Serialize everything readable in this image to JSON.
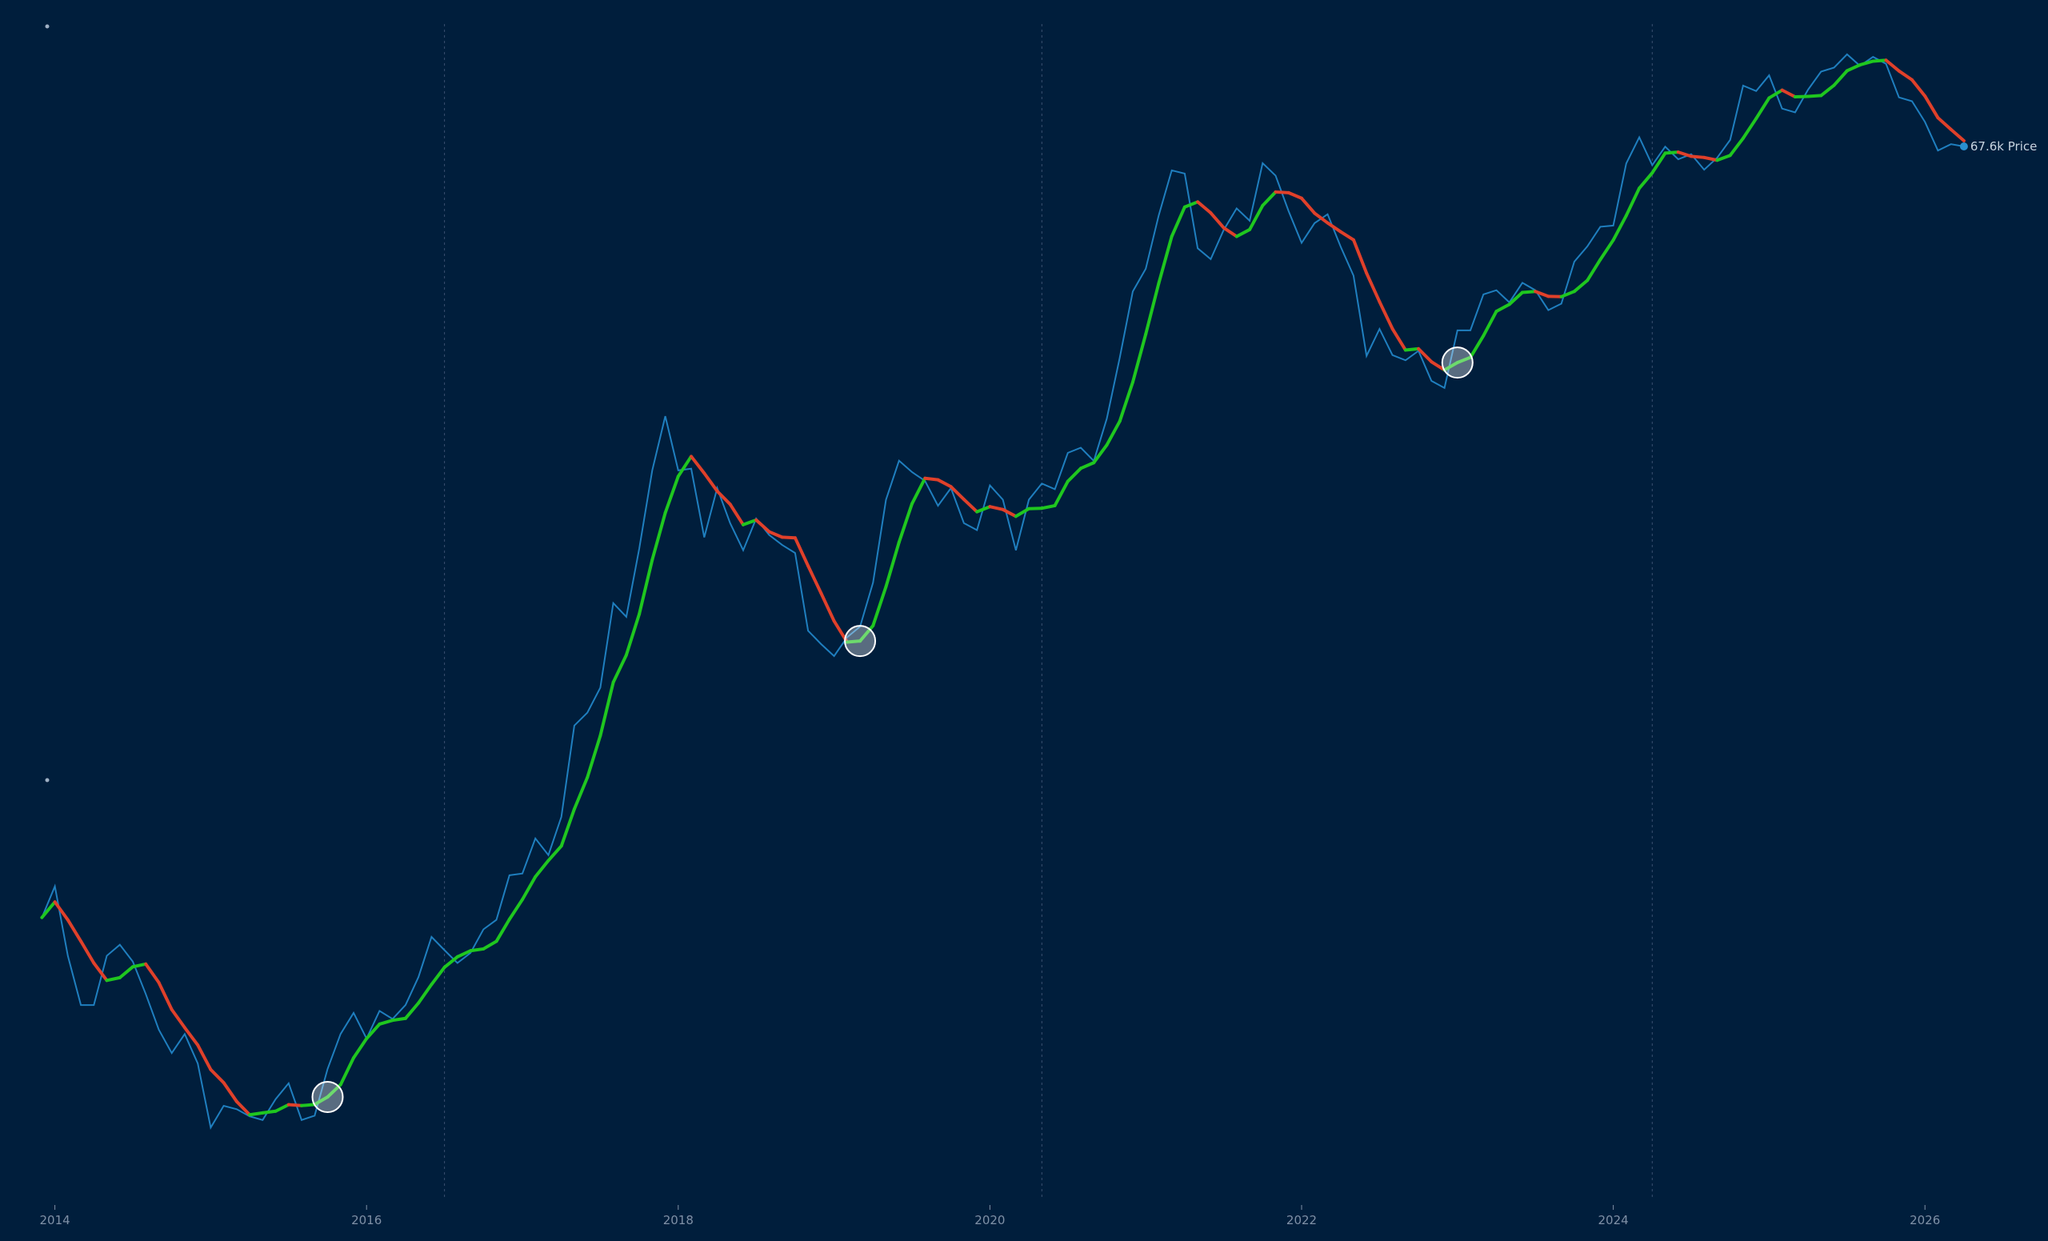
{
  "chart_data": {
    "type": "line",
    "title": "",
    "xlabel": "",
    "ylabel": "",
    "y_scale": "log",
    "grid": false,
    "x_ticks": [
      "2014",
      "2016",
      "2018",
      "2020",
      "2022",
      "2024",
      "2026"
    ],
    "x_range": [
      "2013-12",
      "2026-04"
    ],
    "halving_lines": [
      "2016-07",
      "2020-05",
      "2024-04"
    ],
    "last_price_label": "67.6k Price",
    "colors": {
      "background": "#001e3c",
      "price": "#1f7fbf",
      "trend_up": "#1fc71f",
      "trend_down": "#e0402a",
      "marker": "#ffffff",
      "tick": "#7f90a6",
      "halving": "#3a5070"
    },
    "series": [
      {
        "x": [
          "2013-12",
          "2014-01",
          "2014-02",
          "2014-03",
          "2014-04",
          "2014-05",
          "2014-06",
          "2014-07",
          "2014-08",
          "2014-09",
          "2014-10",
          "2014-11",
          "2014-12",
          "2015-01",
          "2015-02",
          "2015-03",
          "2015-04",
          "2015-05",
          "2015-06",
          "2015-07",
          "2015-08",
          "2015-09",
          "2015-10",
          "2015-11",
          "2015-12",
          "2016-01",
          "2016-02",
          "2016-03",
          "2016-04",
          "2016-05",
          "2016-06",
          "2016-07",
          "2016-08",
          "2016-09",
          "2016-10",
          "2016-11",
          "2016-12",
          "2017-01",
          "2017-02",
          "2017-03",
          "2017-04",
          "2017-05",
          "2017-06",
          "2017-07",
          "2017-08",
          "2017-09",
          "2017-10",
          "2017-11",
          "2017-12",
          "2018-01",
          "2018-02",
          "2018-03",
          "2018-04",
          "2018-05",
          "2018-06",
          "2018-07",
          "2018-08",
          "2018-09",
          "2018-10",
          "2018-11",
          "2018-12",
          "2019-01",
          "2019-02",
          "2019-03",
          "2019-04",
          "2019-05",
          "2019-06",
          "2019-07",
          "2019-08",
          "2019-09",
          "2019-10",
          "2019-11",
          "2019-12",
          "2020-01",
          "2020-02",
          "2020-03",
          "2020-04",
          "2020-05",
          "2020-06",
          "2020-07",
          "2020-08",
          "2020-09",
          "2020-10",
          "2020-11",
          "2020-12",
          "2021-01",
          "2021-02",
          "2021-03",
          "2021-04",
          "2021-05",
          "2021-06",
          "2021-07",
          "2021-08",
          "2021-09",
          "2021-10",
          "2021-11",
          "2021-12",
          "2022-01",
          "2022-02",
          "2022-03",
          "2022-04",
          "2022-05",
          "2022-06",
          "2022-07",
          "2022-08",
          "2022-09",
          "2022-10",
          "2022-11",
          "2022-12",
          "2023-01",
          "2023-02",
          "2023-03",
          "2023-04",
          "2023-05",
          "2023-06",
          "2023-07",
          "2023-08",
          "2023-09",
          "2023-10",
          "2023-11",
          "2023-12",
          "2024-01",
          "2024-02",
          "2024-03",
          "2024-04",
          "2024-05",
          "2024-06",
          "2024-07",
          "2024-08",
          "2024-09",
          "2024-10",
          "2024-11",
          "2024-12",
          "2025-01",
          "2025-02",
          "2025-03",
          "2025-04",
          "2025-05",
          "2025-06",
          "2025-07",
          "2025-08",
          "2025-09",
          "2025-10",
          "2025-11",
          "2025-12",
          "2026-01",
          "2026-02",
          "2026-03",
          "2026-04"
        ],
        "values": [
          750,
          900,
          600,
          450,
          450,
          600,
          640,
          580,
          480,
          390,
          340,
          380,
          320,
          220,
          250,
          245,
          235,
          230,
          260,
          285,
          230,
          236,
          310,
          380,
          430,
          370,
          435,
          415,
          450,
          530,
          670,
          620,
          575,
          610,
          700,
          740,
          960,
          970,
          1190,
          1080,
          1350,
          2300,
          2480,
          2870,
          4700,
          4340,
          6470,
          10200,
          14000,
          10200,
          10300,
          6900,
          9200,
          7500,
          6400,
          7700,
          7000,
          6600,
          6300,
          4000,
          3700,
          3450,
          3850,
          4100,
          5300,
          8600,
          10800,
          10100,
          9600,
          8300,
          9200,
          7500,
          7200,
          9350,
          8600,
          6400,
          8600,
          9450,
          9140,
          11300,
          11650,
          10780,
          13800,
          19700,
          29000,
          33100,
          45200,
          58800,
          57700,
          37300,
          35000,
          41500,
          47100,
          43800,
          61300,
          57000,
          46300,
          38500,
          43200,
          45500,
          37700,
          31800,
          19900,
          23300,
          20000,
          19400,
          20500,
          17200,
          16500,
          23100,
          23100,
          28500,
          29200,
          27200,
          30500,
          29200,
          26000,
          27000,
          34500,
          37700,
          42300,
          42600,
          61200,
          71300,
          60600,
          67500,
          62700,
          64600,
          59000,
          63300,
          70200,
          96400,
          93400,
          102400,
          84300,
          82500,
          94200,
          104600,
          107100,
          115700,
          108200,
          114000,
          109500,
          90000,
          88000,
          78000,
          66000,
          68500,
          67600
        ]
      }
    ],
    "trend_reversal_markers": [
      "2015-10",
      "2019-03",
      "2023-01"
    ]
  }
}
